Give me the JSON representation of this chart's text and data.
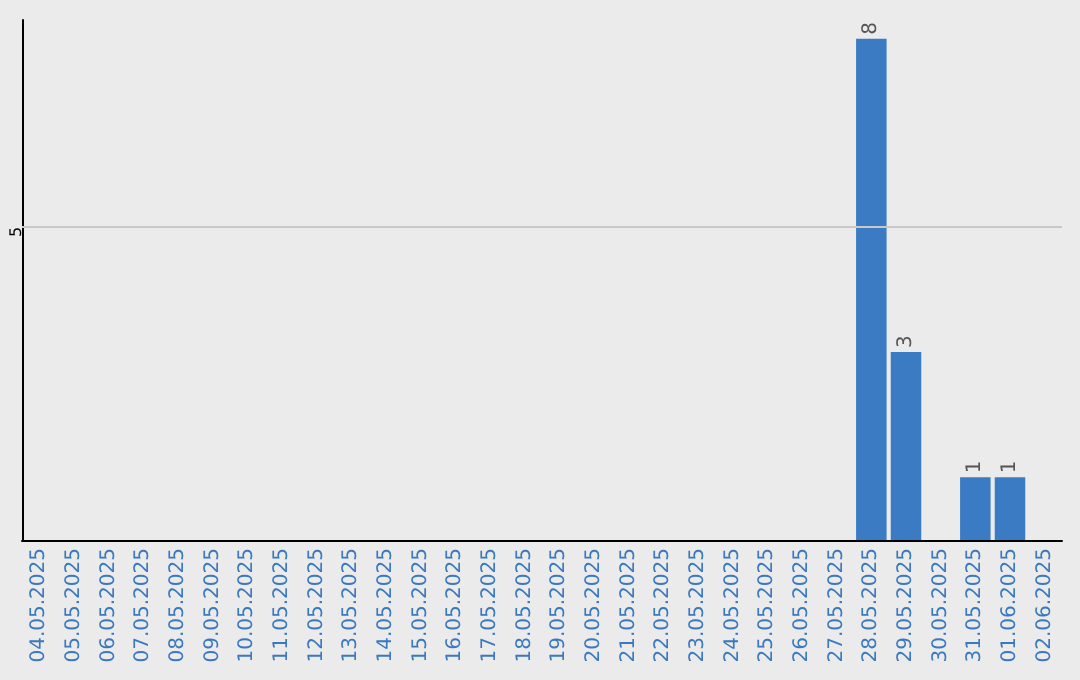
{
  "chart_data": {
    "type": "bar",
    "categories": [
      "04.05.2025",
      "05.05.2025",
      "06.05.2025",
      "07.05.2025",
      "08.05.2025",
      "09.05.2025",
      "10.05.2025",
      "11.05.2025",
      "12.05.2025",
      "13.05.2025",
      "14.05.2025",
      "15.05.2025",
      "16.05.2025",
      "17.05.2025",
      "18.05.2025",
      "19.05.2025",
      "20.05.2025",
      "21.05.2025",
      "22.05.2025",
      "23.05.2025",
      "24.05.2025",
      "25.05.2025",
      "26.05.2025",
      "27.05.2025",
      "28.05.2025",
      "29.05.2025",
      "30.05.2025",
      "31.05.2025",
      "01.06.2025",
      "02.06.2025"
    ],
    "values": [
      null,
      null,
      null,
      null,
      null,
      null,
      null,
      null,
      null,
      null,
      null,
      null,
      null,
      null,
      null,
      null,
      null,
      null,
      null,
      null,
      null,
      null,
      null,
      null,
      8,
      3,
      null,
      1,
      1,
      null
    ],
    "data_labels": true,
    "color": "#3b7bc4",
    "ylim": [
      0,
      8.3
    ],
    "tick_labels": "x",
    "ref_lines": [
      {
        "axis": "y",
        "value": 5,
        "label": "5",
        "color": "#c8c8c8"
      }
    ]
  }
}
